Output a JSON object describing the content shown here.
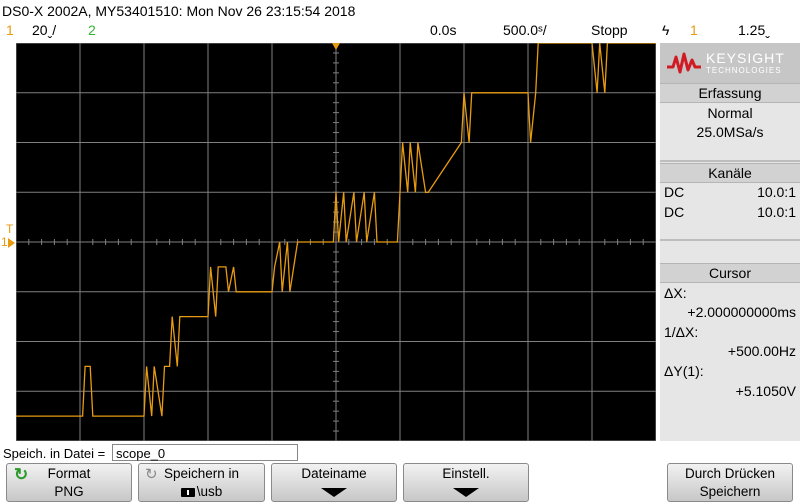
{
  "title": "DS0-X 2002A, MY53401510: Mon Nov 26 23:15:54 2018",
  "status": {
    "ch1_num": "1",
    "ch1_scale": "20ˬ/",
    "ch2_num": "2",
    "delay": "0.0s",
    "timebase": "500.0ˢ/",
    "run_state": "Stopp",
    "trigger_symbol": "ϟ",
    "trigger_ch": "1",
    "trigger_level": "1.25ˬ"
  },
  "markers": {
    "trigger_marker": "T",
    "ch1_ground_marker": "1"
  },
  "side": {
    "brand": "KEYSIGHT",
    "brand_sub": "TECHNOLOGIES",
    "acq_head": "Erfassung",
    "acq_mode": "Normal",
    "acq_rate": "25.0MSa/s",
    "chan_head": "Kanäle",
    "ch1_coupling": "DC",
    "ch1_probe": "10.0:1",
    "ch2_coupling": "DC",
    "ch2_probe": "10.0:1",
    "cursor_head": "Cursor",
    "dx_label": "ΔX:",
    "dx_value": "+2.000000000ms",
    "inv_dx_label": "1/ΔX:",
    "inv_dx_value": "+500.00Hz",
    "dy_label": "ΔY(1):",
    "dy_value": "+5.1050V"
  },
  "save_bar": {
    "label": "Speich. in Datei =",
    "filename": "scope_0"
  },
  "softkeys": [
    {
      "l1": "Format",
      "l2": "PNG"
    },
    {
      "l1": "Speichern in",
      "l2": "\\usb"
    },
    {
      "l1": "Dateiname",
      "l2": ""
    },
    {
      "l1": "Einstell.",
      "l2": ""
    },
    {
      "l1": "Durch Drücken",
      "l2": "Speichern"
    }
  ],
  "colors": {
    "ch1": "#e89b10",
    "ch2": "#34b534",
    "grid": "#808080",
    "screen_bg": "#000000"
  },
  "chart_data": {
    "type": "line",
    "title": "",
    "xlabel": "",
    "ylabel": "",
    "series": [
      {
        "x": [
          -2.5,
          -1.98,
          -1.96,
          -1.92,
          -1.9,
          -1.5,
          -1.48,
          -1.44,
          -1.42,
          -1.36,
          -1.34,
          -1.3,
          -1.28,
          -1.24,
          -1.22,
          -1.2,
          -1.0,
          -0.98,
          -0.94,
          -0.92,
          -0.86,
          -0.84,
          -0.8,
          -0.78,
          -0.5,
          -0.48,
          -0.44,
          -0.42,
          -0.38,
          -0.36,
          -0.3,
          -0.28,
          -0.02,
          0.0,
          0.02,
          0.06,
          0.08,
          0.14,
          0.16,
          0.22,
          0.24,
          0.3,
          0.32,
          0.48,
          0.5,
          0.52,
          0.56,
          0.58,
          0.62,
          0.64,
          0.7,
          0.72,
          0.98,
          1.0,
          1.04,
          1.06,
          1.5,
          1.52,
          1.56,
          1.58,
          2.0,
          2.04,
          2.06,
          2.1,
          2.12,
          2.5
        ],
        "y": [
          -3.5,
          -3.5,
          -2.5,
          -2.5,
          -3.5,
          -3.5,
          -2.5,
          -3.5,
          -2.5,
          -3.5,
          -2.5,
          -2.5,
          -1.5,
          -2.5,
          -1.5,
          -1.5,
          -1.5,
          -0.5,
          -1.5,
          -0.5,
          -0.5,
          -1.0,
          -0.5,
          -1.0,
          -1.0,
          -0.5,
          0.0,
          -1.0,
          0.0,
          -1.0,
          0.0,
          0.0,
          0.0,
          1.0,
          0.0,
          1.0,
          0.0,
          1.0,
          0.0,
          1.0,
          0.0,
          1.0,
          0.0,
          0.0,
          1.0,
          2.0,
          1.0,
          2.0,
          1.0,
          2.0,
          1.0,
          1.0,
          2.0,
          3.0,
          2.0,
          3.0,
          3.0,
          2.0,
          3.0,
          4.0,
          4.0,
          3.0,
          4.0,
          3.0,
          4.0,
          4.0
        ]
      }
    ],
    "xlim": [
      -2.5,
      2.5
    ],
    "ylim": [
      -4,
      4
    ],
    "grid": true
  }
}
